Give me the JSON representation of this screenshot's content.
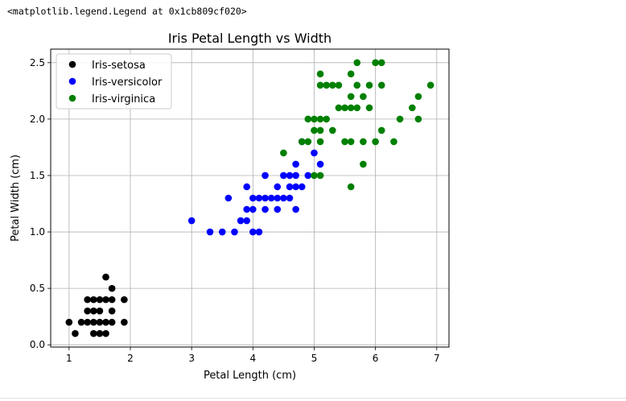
{
  "output_line": "<matplotlib.legend.Legend at 0x1cb809cf020>",
  "chart_data": {
    "type": "scatter",
    "title": "Iris Petal Length vs Width",
    "xlabel": "Petal Length (cm)",
    "ylabel": "Petal Width (cm)",
    "xlim": [
      0.7,
      7.2
    ],
    "ylim": [
      -0.02,
      2.62
    ],
    "xticks": [
      1,
      2,
      3,
      4,
      5,
      6,
      7
    ],
    "yticks": [
      0.0,
      0.5,
      1.0,
      1.5,
      2.0,
      2.5
    ],
    "ytick_labels": [
      "0.0",
      "0.5",
      "1.0",
      "1.5",
      "2.0",
      "2.5"
    ],
    "grid": true,
    "legend_position": "top-left",
    "series": [
      {
        "name": "Iris-setosa",
        "color": "#000000",
        "points": [
          [
            1.0,
            0.2
          ],
          [
            1.1,
            0.1
          ],
          [
            1.2,
            0.2
          ],
          [
            1.3,
            0.2
          ],
          [
            1.3,
            0.3
          ],
          [
            1.3,
            0.4
          ],
          [
            1.4,
            0.1
          ],
          [
            1.4,
            0.2
          ],
          [
            1.4,
            0.3
          ],
          [
            1.5,
            0.1
          ],
          [
            1.5,
            0.2
          ],
          [
            1.5,
            0.3
          ],
          [
            1.5,
            0.4
          ],
          [
            1.6,
            0.2
          ],
          [
            1.6,
            0.4
          ],
          [
            1.6,
            0.6
          ],
          [
            1.7,
            0.2
          ],
          [
            1.7,
            0.3
          ],
          [
            1.7,
            0.4
          ],
          [
            1.7,
            0.5
          ],
          [
            1.9,
            0.2
          ],
          [
            1.9,
            0.4
          ],
          [
            1.4,
            0.4
          ],
          [
            1.6,
            0.1
          ]
        ]
      },
      {
        "name": "Iris-versicolor",
        "color": "#0000ff",
        "points": [
          [
            3.0,
            1.1
          ],
          [
            3.3,
            1.0
          ],
          [
            3.5,
            1.0
          ],
          [
            3.6,
            1.3
          ],
          [
            3.7,
            1.0
          ],
          [
            3.8,
            1.1
          ],
          [
            3.9,
            1.1
          ],
          [
            3.9,
            1.2
          ],
          [
            3.9,
            1.4
          ],
          [
            4.0,
            1.0
          ],
          [
            4.0,
            1.2
          ],
          [
            4.0,
            1.3
          ],
          [
            4.1,
            1.0
          ],
          [
            4.1,
            1.3
          ],
          [
            4.2,
            1.2
          ],
          [
            4.2,
            1.3
          ],
          [
            4.2,
            1.5
          ],
          [
            4.3,
            1.3
          ],
          [
            4.4,
            1.2
          ],
          [
            4.4,
            1.3
          ],
          [
            4.4,
            1.4
          ],
          [
            4.5,
            1.3
          ],
          [
            4.5,
            1.5
          ],
          [
            4.6,
            1.3
          ],
          [
            4.6,
            1.4
          ],
          [
            4.6,
            1.5
          ],
          [
            4.7,
            1.2
          ],
          [
            4.7,
            1.4
          ],
          [
            4.7,
            1.5
          ],
          [
            4.7,
            1.6
          ],
          [
            4.8,
            1.4
          ],
          [
            4.8,
            1.8
          ],
          [
            4.9,
            1.5
          ],
          [
            5.0,
            1.7
          ],
          [
            5.1,
            1.6
          ]
        ]
      },
      {
        "name": "Iris-virginica",
        "color": "#008000",
        "points": [
          [
            4.5,
            1.7
          ],
          [
            4.8,
            1.8
          ],
          [
            4.9,
            1.8
          ],
          [
            4.9,
            2.0
          ],
          [
            5.0,
            1.5
          ],
          [
            5.0,
            1.9
          ],
          [
            5.0,
            2.0
          ],
          [
            5.1,
            1.5
          ],
          [
            5.1,
            1.8
          ],
          [
            5.1,
            1.9
          ],
          [
            5.1,
            2.0
          ],
          [
            5.1,
            2.3
          ],
          [
            5.1,
            2.4
          ],
          [
            5.2,
            2.0
          ],
          [
            5.2,
            2.3
          ],
          [
            5.3,
            1.9
          ],
          [
            5.3,
            2.3
          ],
          [
            5.4,
            2.1
          ],
          [
            5.4,
            2.3
          ],
          [
            5.5,
            1.8
          ],
          [
            5.5,
            2.1
          ],
          [
            5.6,
            1.4
          ],
          [
            5.6,
            1.8
          ],
          [
            5.6,
            2.1
          ],
          [
            5.6,
            2.2
          ],
          [
            5.6,
            2.4
          ],
          [
            5.7,
            2.1
          ],
          [
            5.7,
            2.3
          ],
          [
            5.7,
            2.5
          ],
          [
            5.8,
            1.6
          ],
          [
            5.8,
            1.8
          ],
          [
            5.8,
            2.2
          ],
          [
            5.9,
            2.1
          ],
          [
            5.9,
            2.3
          ],
          [
            6.0,
            1.8
          ],
          [
            6.0,
            2.5
          ],
          [
            6.1,
            1.9
          ],
          [
            6.1,
            2.3
          ],
          [
            6.1,
            2.5
          ],
          [
            6.3,
            1.8
          ],
          [
            6.4,
            2.0
          ],
          [
            6.6,
            2.1
          ],
          [
            6.7,
            2.0
          ],
          [
            6.7,
            2.2
          ],
          [
            6.9,
            2.3
          ]
        ]
      }
    ]
  }
}
